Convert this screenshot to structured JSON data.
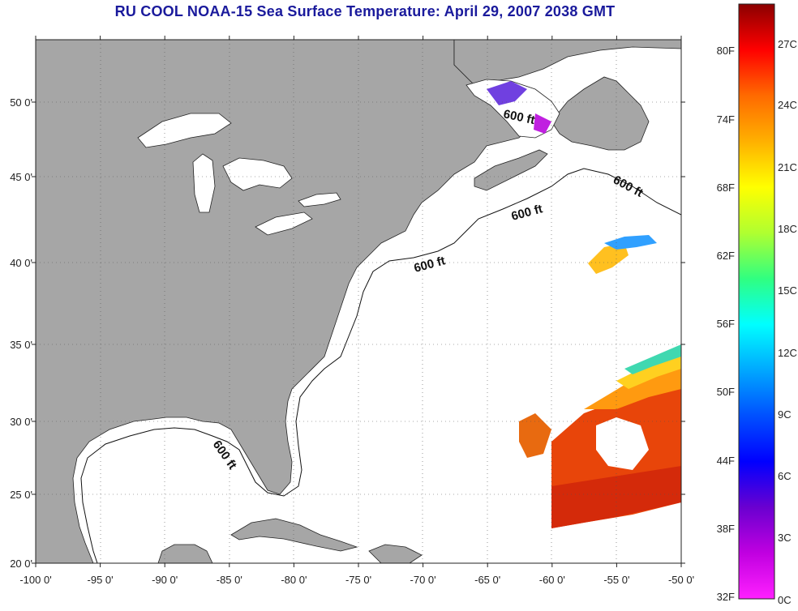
{
  "title": "RU COOL  NOAA-15  Sea Surface Temperature:  April 29, 2007 2038 GMT",
  "map": {
    "lon_ticks": [
      "-100 0'",
      "-95 0'",
      "-90 0'",
      "-85 0'",
      "-80 0'",
      "-75 0'",
      "-70 0'",
      "-65 0'",
      "-60 0'",
      "-55 0'",
      "-50 0'"
    ],
    "lat_ticks": [
      "50 0'",
      "45 0'",
      "40 0'",
      "35 0'",
      "30 0'",
      "25 0'",
      "20 0'"
    ],
    "lon_range": [
      -100,
      -50
    ],
    "lat_range": [
      20,
      52.5
    ],
    "contour_label": "600 ft",
    "land_color": "#a6a6a6",
    "water_color": "#ffffff"
  },
  "colorbar": {
    "fahrenheit_labels": [
      "80F",
      "74F",
      "68F",
      "62F",
      "56F",
      "50F",
      "44F",
      "38F",
      "32F"
    ],
    "celsius_labels": [
      "27C",
      "24C",
      "21C",
      "18C",
      "15C",
      "12C",
      "9C",
      "6C",
      "3C",
      "0C"
    ],
    "colors": [
      "#8b0000",
      "#ff0000",
      "#ff6a00",
      "#ffb000",
      "#ffff00",
      "#b0ff30",
      "#30ff80",
      "#00ffff",
      "#00a8ff",
      "#0050ff",
      "#0000ff",
      "#6a00d0",
      "#c000e0",
      "#ff20ff"
    ]
  }
}
